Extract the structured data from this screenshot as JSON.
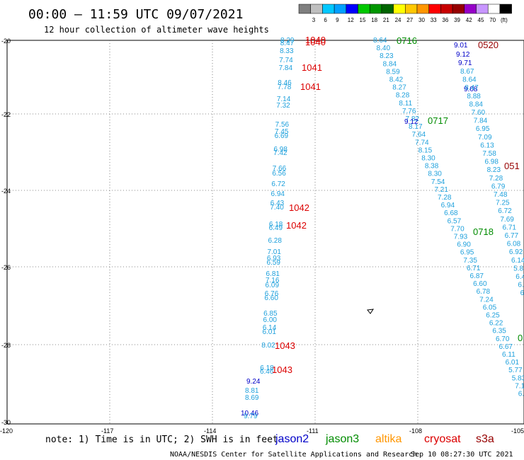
{
  "header": {
    "title": "00:00 – 11:59 UTC 09/07/2021",
    "subtitle": "12 hour collection of altimeter wave heights"
  },
  "colorbar": {
    "colors": [
      "#7f7f7f",
      "#bfbfbf",
      "#00c8ff",
      "#00a0ff",
      "#0000ff",
      "#00c800",
      "#009600",
      "#006400",
      "#ffff00",
      "#ffc800",
      "#ff9600",
      "#ff0000",
      "#c80000",
      "#960000",
      "#9600c8",
      "#c896ff",
      "#ffffff",
      "#000000"
    ],
    "labels": [
      "3",
      "6",
      "9",
      "12",
      "15",
      "18",
      "21",
      "24",
      "27",
      "30",
      "33",
      "36",
      "39",
      "42",
      "45",
      "70"
    ],
    "unit": "(ft)"
  },
  "axes": {
    "lat_labels": [
      "-20",
      "-22",
      "-24",
      "-26",
      "-28",
      "-30"
    ],
    "lon_labels": [
      "-120",
      "-117",
      "-114",
      "-111",
      "-108",
      "-105"
    ]
  },
  "palette": {
    "jason2": "#0000c8",
    "jason3": "#008c00",
    "altika": "#ff9600",
    "cryosat": "#dc0000",
    "s3a": "#960000",
    "wave": "#1ea0dc"
  },
  "tracks": {
    "t1": {
      "values": [
        "8.29",
        "8.47",
        "8.33",
        "7.74",
        "7.84",
        "8.46",
        "7.78",
        "7.14",
        "7.32",
        "7.56",
        "7.45",
        "6.69",
        "6.98",
        "7.42",
        "7.66",
        "6.56",
        "6.72",
        "6.94",
        "6.43",
        "7.40",
        "6.18",
        "6.49",
        "6.28",
        "7.01",
        "6.93",
        "6.59",
        "6.81",
        "7.16",
        "6.09",
        "6.76",
        "6.60",
        "6.85",
        "6.00",
        "6.14",
        "6.01",
        "8.02",
        "6.18",
        "6.46"
      ],
      "extras": [
        "9.24",
        "8.81",
        "8.69",
        "10.46",
        "9.79"
      ]
    },
    "t2": {
      "values": [
        "8.64",
        "8.40",
        "8.23",
        "8.84",
        "8.59",
        "8.42",
        "8.27",
        "8.28",
        "8.11",
        "7.76",
        "7.82",
        "8.17",
        "7.64",
        "7.74",
        "8.15",
        "8.30",
        "8.38",
        "8.30",
        "7.54",
        "7.21",
        "7.28",
        "6.94",
        "6.68",
        "6.57",
        "7.70",
        "7.93",
        "6.90",
        "6.95",
        "7.35",
        "6.71",
        "6.87",
        "6.60",
        "6.78",
        "7.24",
        "6.05",
        "6.25",
        "6.22",
        "6.35",
        "6.70",
        "6.67",
        "6.11",
        "6.01",
        "5.77",
        "5.83",
        "7.12",
        "6.12",
        "6.09",
        "7.5"
      ],
      "dark_value": "9.12"
    },
    "t3": {
      "dark_values": [
        "9.01",
        "9.12",
        "9.71",
        "9.08"
      ],
      "values": [
        "8.67",
        "8.64",
        "8.47",
        "8.88",
        "8.84",
        "7.60",
        "7.84",
        "6.95",
        "7.09",
        "6.13",
        "7.58",
        "6.98",
        "8.23",
        "7.28",
        "6.79",
        "7.48",
        "7.25",
        "6.72",
        "7.69",
        "6.71",
        "6.77",
        "6.08",
        "6.92",
        "6.14",
        "5.8",
        "6.4",
        "6.",
        "6.",
        "6."
      ]
    }
  },
  "times": {
    "c1": "1040",
    "c2": "1040",
    "c3": "1041",
    "c4": "1041",
    "c5": "1042",
    "c6": "1042",
    "c7": "1043",
    "c8": "1043",
    "j3a": "0716",
    "j3b": "0717",
    "j3c": "0718",
    "j3d": "0",
    "s3a1": "0520",
    "s3a2": "051"
  },
  "footer": {
    "note": "note: 1) Time is in UTC; 2) SWH is in feet",
    "legend": {
      "jason2": "jason2",
      "jason3": "jason3",
      "altika": "altika",
      "cryosat": "cryosat",
      "s3a": "s3a"
    },
    "credit": "NOAA/NESDIS Center for Satellite Applications and Research",
    "timestamp": "Sep 10 08:27:30 UTC 2021"
  }
}
